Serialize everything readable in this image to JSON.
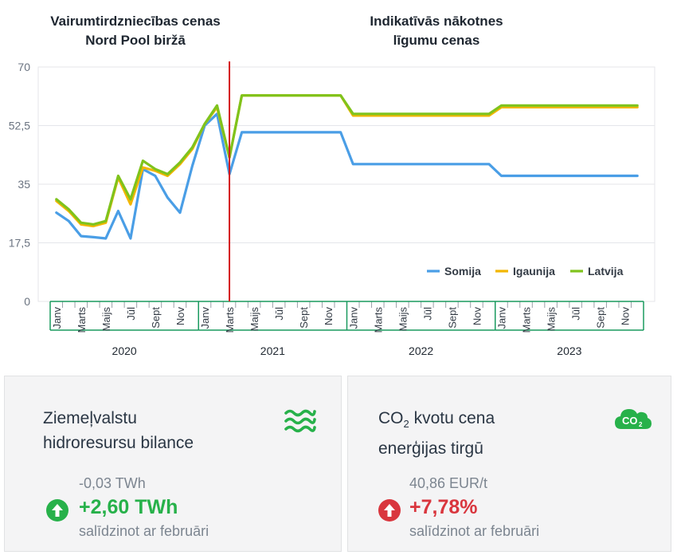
{
  "headers": {
    "left_line1": "Vairumtirdzniecības cenas",
    "left_line2": "Nord Pool biržā",
    "right_line1": "Indikatīvās nākotnes",
    "right_line2": "līgumu cenas"
  },
  "chart_data": {
    "type": "line",
    "ylim": [
      0,
      70
    ],
    "yticks": [
      "0",
      "17,5",
      "35",
      "52,5",
      "70"
    ],
    "ytick_values": [
      0,
      17.5,
      35,
      52.5,
      70
    ],
    "grid": true,
    "legend_position": "bottom-right",
    "divider_after_index": 14,
    "month_labels": [
      "Janv",
      "",
      "Marts",
      "",
      "Maijs",
      "",
      "Jūl",
      "",
      "Sept",
      "",
      "Nov",
      "",
      "Janv",
      "",
      "Marts",
      "",
      "Maijs",
      "",
      "Jūl",
      "",
      "Sept",
      "",
      "Nov",
      "",
      "Janv",
      "",
      "Marts",
      "",
      "Maijs",
      "",
      "Jūl",
      "",
      "Sept",
      "",
      "Nov",
      "",
      "Janv",
      "",
      "Marts",
      "",
      "Maijs",
      "",
      "Jūl",
      "",
      "Sept",
      "",
      "Nov",
      ""
    ],
    "years": [
      "2020",
      "2021",
      "2022",
      "2023"
    ],
    "series": [
      {
        "name": "Somija",
        "color": "#4a9ee6",
        "values": [
          26.5,
          24,
          19.5,
          19.2,
          18.8,
          27,
          18.8,
          39.5,
          37.5,
          31,
          26.5,
          40.5,
          52.5,
          56,
          38,
          50.5,
          50.5,
          50.5,
          50.5,
          50.5,
          50.5,
          50.5,
          50.5,
          50.5,
          41,
          41,
          41,
          41,
          41,
          41,
          41,
          41,
          41,
          41,
          41,
          41,
          37.5,
          37.5,
          37.5,
          37.5,
          37.5,
          37.5,
          37.5,
          37.5,
          37.5,
          37.5,
          37.5,
          37.5
        ]
      },
      {
        "name": "Igaunija",
        "color": "#f2b600",
        "values": [
          30,
          27,
          23,
          22.5,
          23.5,
          37,
          29,
          40,
          39,
          37.5,
          41,
          45.5,
          53,
          58,
          43,
          61.5,
          61.5,
          61.5,
          61.5,
          61.5,
          61.5,
          61.5,
          61.5,
          61.5,
          55.5,
          55.5,
          55.5,
          55.5,
          55.5,
          55.5,
          55.5,
          55.5,
          55.5,
          55.5,
          55.5,
          55.5,
          58,
          58,
          58,
          58,
          58,
          58,
          58,
          58,
          58,
          58,
          58,
          58
        ]
      },
      {
        "name": "Latvija",
        "color": "#7fc31c",
        "values": [
          30.5,
          27.5,
          23.5,
          23,
          24,
          37.5,
          30.5,
          42,
          39.5,
          38,
          41.5,
          46,
          53,
          58.5,
          43,
          61.5,
          61.5,
          61.5,
          61.5,
          61.5,
          61.5,
          61.5,
          61.5,
          61.5,
          56,
          56,
          56,
          56,
          56,
          56,
          56,
          56,
          56,
          56,
          56,
          56,
          58.5,
          58.5,
          58.5,
          58.5,
          58.5,
          58.5,
          58.5,
          58.5,
          58.5,
          58.5,
          58.5,
          58.5
        ]
      }
    ]
  },
  "cards": [
    {
      "title_line1": "Ziemeļvalstu",
      "title_line2": "hidroresursu bilance",
      "icon": "water-waves-icon",
      "icon_color": "#27b14a",
      "previous": "-0,03 TWh",
      "change": "+2,60 TWh",
      "change_color": "#27b14a",
      "arrow_color": "#27b14a",
      "comparison": "salīdzinot ar februāri"
    },
    {
      "title_pre": "CO",
      "title_sub": "2",
      "title_post": " kvotu cena",
      "title_line2": "enerģijas tirgū",
      "icon": "co2-cloud-icon",
      "icon_label": "CO",
      "icon_sub": "2",
      "icon_color": "#27b14a",
      "previous": "40,86 EUR/t",
      "change": "+7,78%",
      "change_color": "#d9363e",
      "arrow_color": "#d9363e",
      "comparison": "salīdzinot ar februāri"
    }
  ]
}
